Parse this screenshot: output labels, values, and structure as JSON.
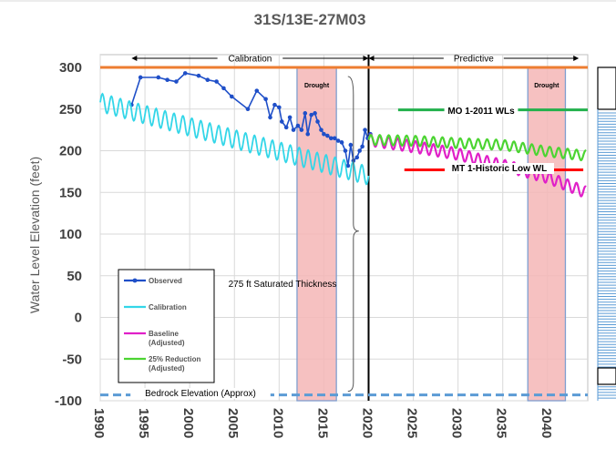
{
  "chart_data": {
    "type": "line",
    "title": "31S/13E-27M03",
    "xlabel": "",
    "ylabel": "Water Level Elevation (feet)",
    "xlim": [
      1990,
      2044.5
    ],
    "ylim": [
      -100,
      300
    ],
    "y_ticks": [
      300,
      250,
      200,
      150,
      100,
      50,
      0,
      -50,
      -100
    ],
    "x_ticks": [
      1990,
      1995,
      2000,
      2005,
      2010,
      2015,
      2020,
      2025,
      2030,
      2035,
      2040
    ],
    "grid": true,
    "legend_position": "bottom-left",
    "periods": [
      {
        "label": "Calibration",
        "start": 1993.5,
        "end": 2020
      },
      {
        "label": "Predictive",
        "start": 2020,
        "end": 2043.5
      }
    ],
    "divider_year": 2020,
    "drought_periods": [
      {
        "label": "Drought",
        "start": 2012,
        "end": 2016.4
      },
      {
        "label": "Drought",
        "start": 2037.8,
        "end": 2042
      }
    ],
    "reference_lines": [
      {
        "label": "",
        "y": 300,
        "color": "#ED7D31",
        "start": 1990,
        "end": 2044.5
      },
      {
        "label": "MO 1-2011 WLs",
        "y": 249,
        "color": "#22B14C",
        "start": 2023.3,
        "end": 2044.5
      },
      {
        "label": "MT 1-Historic Low WL",
        "y": 177,
        "color": "#FF0000",
        "start": 2024,
        "end": 2044
      },
      {
        "label": "Bedrock Elevation (Approx)",
        "y": -93,
        "color": "#5B9BD5",
        "start": 1990,
        "end": 2044.5
      }
    ],
    "annotations": [
      {
        "label": "275 ft Saturated Thickness",
        "x": 2018.5,
        "y": 40
      }
    ],
    "series": [
      {
        "name": "Observed",
        "color": "#1F4FC8",
        "marker": true,
        "points": [
          [
            1993.5,
            255
          ],
          [
            1994.5,
            288
          ],
          [
            1996.5,
            288
          ],
          [
            1997.5,
            285
          ],
          [
            1998.5,
            283
          ],
          [
            1999.5,
            293
          ],
          [
            2001,
            290
          ],
          [
            2002,
            285
          ],
          [
            2003,
            283
          ],
          [
            2003.8,
            275
          ],
          [
            2004.7,
            265
          ],
          [
            2006.5,
            250
          ],
          [
            2007.5,
            272
          ],
          [
            2008.5,
            262
          ],
          [
            2009,
            240
          ],
          [
            2009.5,
            255
          ],
          [
            2010,
            252
          ],
          [
            2010.3,
            235
          ],
          [
            2010.8,
            228
          ],
          [
            2011.2,
            240
          ],
          [
            2011.6,
            225
          ],
          [
            2012.1,
            230
          ],
          [
            2012.5,
            225
          ],
          [
            2012.9,
            245
          ],
          [
            2013.2,
            220
          ],
          [
            2013.6,
            243
          ],
          [
            2014,
            245
          ],
          [
            2014.3,
            235
          ],
          [
            2014.7,
            225
          ],
          [
            2015,
            220
          ],
          [
            2015.4,
            218
          ],
          [
            2015.8,
            215
          ],
          [
            2016.2,
            215
          ],
          [
            2016.6,
            212
          ],
          [
            2017,
            210
          ],
          [
            2017.4,
            200
          ],
          [
            2017.7,
            182
          ],
          [
            2018,
            207
          ],
          [
            2018.3,
            188
          ],
          [
            2018.7,
            192
          ],
          [
            2019,
            200
          ],
          [
            2019.3,
            205
          ],
          [
            2019.6,
            225
          ],
          [
            2019.9,
            215
          ],
          [
            2020.2,
            220
          ]
        ]
      },
      {
        "name": "Calibration",
        "color": "#33D6E8",
        "start_year": 1990,
        "end_year": 2020,
        "start_value": 258,
        "end_value": 170,
        "seasonal_amplitude": 11
      },
      {
        "name": "Baseline (Adjusted)",
        "color": "#E020C8",
        "start_year": 2020,
        "end_year": 2044.3,
        "trend": [
          [
            2020,
            213
          ],
          [
            2025,
            205
          ],
          [
            2030,
            196
          ],
          [
            2033.5,
            186
          ],
          [
            2036,
            180
          ],
          [
            2040,
            168
          ],
          [
            2044.3,
            150
          ]
        ],
        "seasonal_amplitude": 7
      },
      {
        "name": "25% Reduction (Adjusted)",
        "color": "#4CD432",
        "start_year": 2020,
        "end_year": 2044.3,
        "trend": [
          [
            2020,
            213
          ],
          [
            2025,
            212
          ],
          [
            2030,
            209
          ],
          [
            2035,
            207
          ],
          [
            2040,
            199
          ],
          [
            2044.3,
            194
          ]
        ],
        "seasonal_amplitude": 6
      }
    ]
  }
}
